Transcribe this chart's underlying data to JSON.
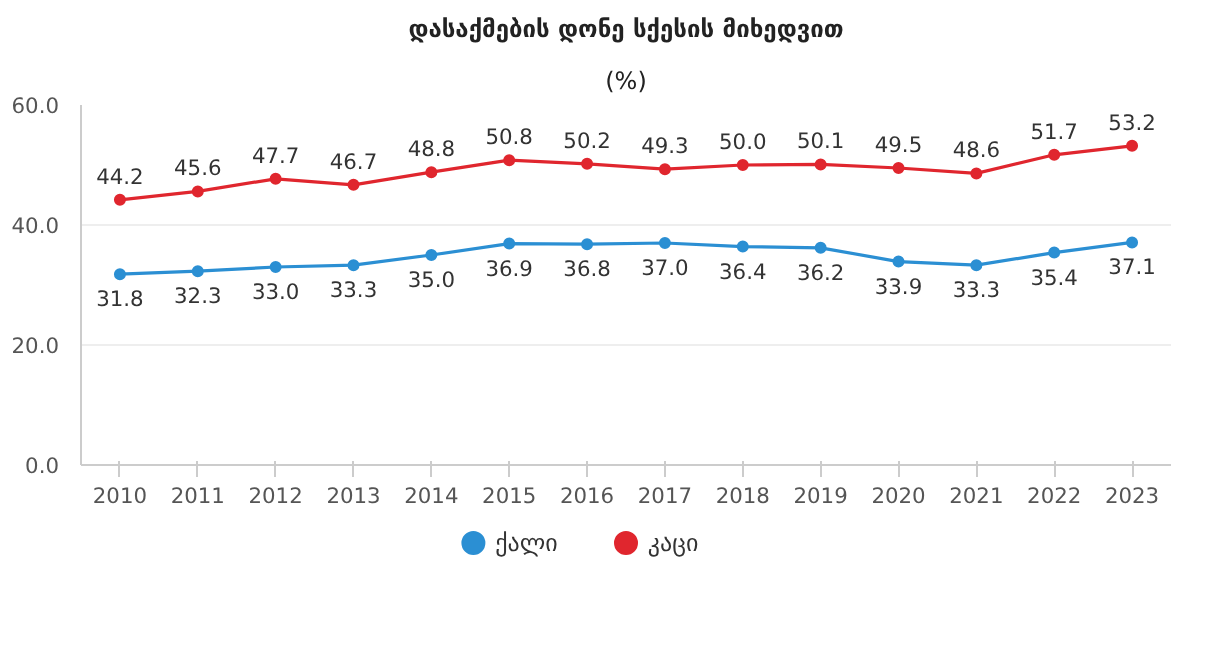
{
  "chart_data": {
    "type": "line",
    "title": "დასაქმების დონე სქესის მიხედვით",
    "subtitle": "(%)",
    "categories": [
      "2010",
      "2011",
      "2012",
      "2013",
      "2014",
      "2015",
      "2016",
      "2017",
      "2018",
      "2019",
      "2020",
      "2021",
      "2022",
      "2023"
    ],
    "series": [
      {
        "name": "ქალი",
        "color": "#2b8fd3",
        "values": [
          31.8,
          32.3,
          33.0,
          33.3,
          35.0,
          36.9,
          36.8,
          37.0,
          36.4,
          36.2,
          33.9,
          33.3,
          35.4,
          37.1
        ],
        "value_labels": [
          "31.8",
          "32.3",
          "33.0",
          "33.3",
          "35.0",
          "36.9",
          "36.8",
          "37.0",
          "36.4",
          "36.2",
          "33.9",
          "33.3",
          "35.4",
          "37.1"
        ]
      },
      {
        "name": "კაცი",
        "color": "#e0262e",
        "values": [
          44.2,
          45.6,
          47.7,
          46.7,
          48.8,
          50.8,
          50.2,
          49.3,
          50.0,
          50.1,
          49.5,
          48.6,
          51.7,
          53.2
        ],
        "value_labels": [
          "44.2",
          "45.6",
          "47.7",
          "46.7",
          "48.8",
          "50.8",
          "50.2",
          "49.3",
          "50.0",
          "50.1",
          "49.5",
          "48.6",
          "51.7",
          "53.2"
        ]
      }
    ],
    "ylim": [
      0,
      60
    ],
    "yticks": [
      {
        "value": 0,
        "label": "0.0"
      },
      {
        "value": 20,
        "label": "20.0"
      },
      {
        "value": 40,
        "label": "40.0"
      },
      {
        "value": 60,
        "label": "60.0"
      }
    ],
    "grid": "y",
    "legend": "bottom",
    "marker": "circle",
    "line_style": "solid"
  }
}
